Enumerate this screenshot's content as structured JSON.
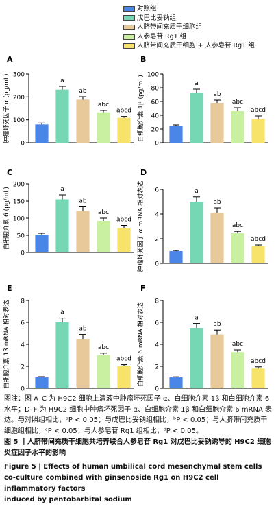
{
  "legend": [
    {
      "label": "对照组",
      "color": "#4a86e8"
    },
    {
      "label": "戊巴比妥钠组",
      "color": "#76d7b4"
    },
    {
      "label": "人脐带间充质干细胞组",
      "color": "#e8c99a"
    },
    {
      "label": "人参皂苷 Rg1 组",
      "color": "#c8f0a0"
    },
    {
      "label": "人脐带间充质干细胞 + 人参皂苷 Rg1 组",
      "color": "#f7e36a"
    }
  ],
  "chart_data": [
    {
      "type": "bar",
      "panel": "A",
      "ylabel": "肿瘤坏死因子 α (pg/mL)",
      "ylim": [
        0,
        300
      ],
      "yticks": [
        0,
        100,
        200,
        300
      ],
      "values": [
        80,
        232,
        188,
        133,
        109
      ],
      "errors": [
        6,
        14,
        13,
        8,
        6
      ],
      "sig": [
        "",
        "a",
        "ab",
        "abc",
        "abcd"
      ]
    },
    {
      "type": "bar",
      "panel": "B",
      "ylabel": "白细胞介素 1β (pg/mL)",
      "ylim": [
        0,
        100
      ],
      "yticks": [
        0,
        20,
        40,
        60,
        80,
        100
      ],
      "values": [
        24,
        73,
        58,
        46,
        35
      ],
      "errors": [
        2,
        5,
        4,
        5,
        4
      ],
      "sig": [
        "",
        "a",
        "ab",
        "abc",
        "abcd"
      ]
    },
    {
      "type": "bar",
      "panel": "C",
      "ylabel": "白细胞介素 6 (pg/mL)",
      "ylim": [
        0,
        200
      ],
      "yticks": [
        0,
        50,
        100,
        150,
        200
      ],
      "values": [
        52,
        155,
        121,
        92,
        71
      ],
      "errors": [
        4,
        13,
        12,
        8,
        8
      ],
      "sig": [
        "",
        "a",
        "ab",
        "abc",
        "abcd"
      ]
    },
    {
      "type": "bar",
      "panel": "D",
      "ylabel": "肿瘤坏死因子 α mRNA 相对表达",
      "ylim": [
        0,
        6
      ],
      "yticks": [
        0,
        2,
        4,
        6
      ],
      "values": [
        1.0,
        5.0,
        4.1,
        2.45,
        1.4
      ],
      "errors": [
        0.05,
        0.4,
        0.4,
        0.15,
        0.1
      ],
      "sig": [
        "",
        "a",
        "ab",
        "abc",
        "abcd"
      ]
    },
    {
      "type": "bar",
      "panel": "E",
      "ylabel": "白细胞介素 1β mRNA 相对表达",
      "ylim": [
        0,
        8
      ],
      "yticks": [
        0,
        2,
        4,
        6,
        8
      ],
      "values": [
        1.0,
        6.0,
        4.5,
        3.0,
        2.0
      ],
      "errors": [
        0.06,
        0.4,
        0.4,
        0.2,
        0.15
      ],
      "sig": [
        "",
        "a",
        "ab",
        "abc",
        "abcd"
      ]
    },
    {
      "type": "bar",
      "panel": "F",
      "ylabel": "白细胞介素 6 mRNA 相对表达",
      "ylim": [
        0,
        8
      ],
      "yticks": [
        0,
        2,
        4,
        6,
        8
      ],
      "values": [
        1.0,
        5.5,
        4.9,
        3.3,
        1.8
      ],
      "errors": [
        0.05,
        0.4,
        0.4,
        0.2,
        0.15
      ],
      "sig": [
        "",
        "a",
        "ab",
        "abc",
        "abcd"
      ]
    }
  ],
  "caption": {
    "note": "图注：图 A–C 为 H9C2 细胞上清液中肿瘤坏死因子 α、白细胞介素 1β 和白细胞介素 6 水平；D–F 为 H9C2 细胞中肿瘤坏死因子 α、白细胞介素 1β 和白细胞介素 6 mRNA 表达。与对照组相比，ᵃP < 0.05；与戊巴比妥钠组相比，ᵇP < 0.05；与人脐带间充质干细胞组相比，ᶜP < 0.05；与人参皂苷 Rg1 组相比，ᵈP < 0.05。",
    "title_cn": "图 5 丨人脐带间充质干细胞共培养联合人参皂苷 Rg1 对戊巴比妥钠诱导的 H9C2 细胞炎症因子水平的影响",
    "title_en_1": "Figure 5 | Effects of human umbilical cord mesenchymal stem cells co-culture combined with ginsenoside Rg1 on H9C2 cell inflammatory factors",
    "title_en_2": "induced by pentobarbital sodium"
  }
}
